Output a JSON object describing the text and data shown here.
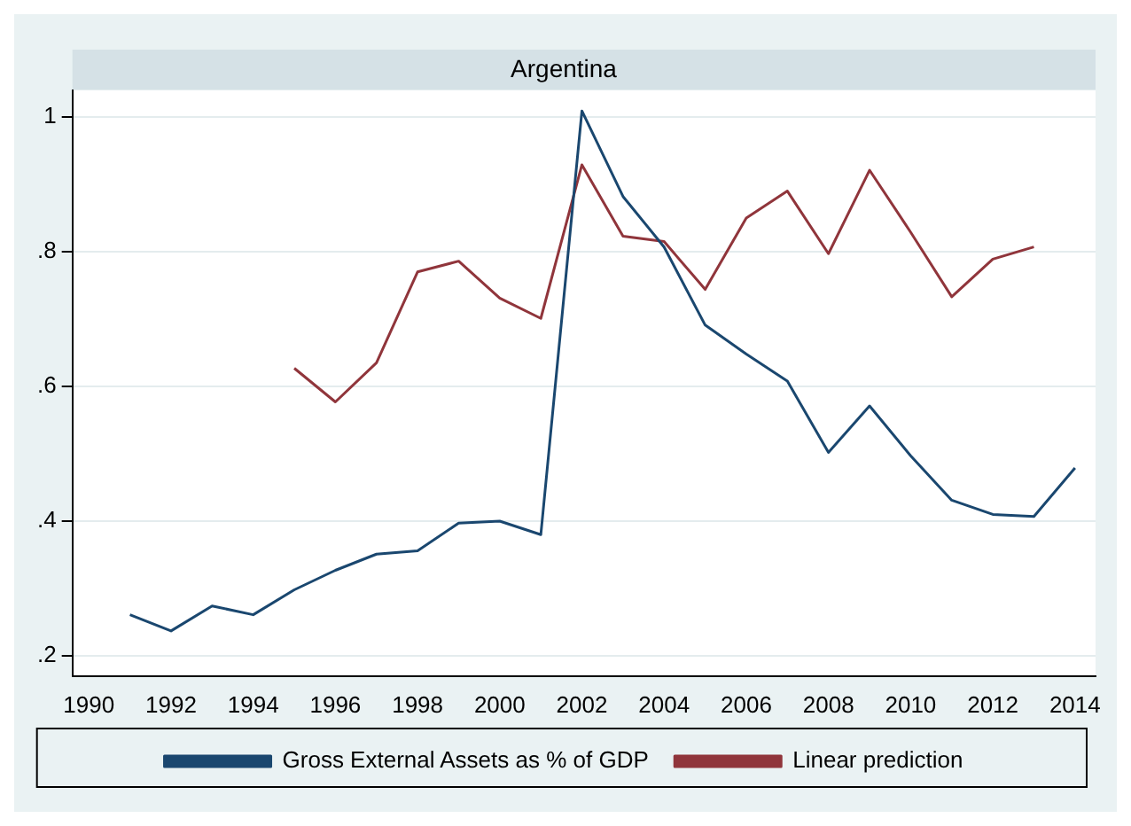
{
  "chart_data": {
    "type": "line",
    "title": "Argentina",
    "x": [
      1991,
      1992,
      1993,
      1994,
      1995,
      1996,
      1997,
      1998,
      1999,
      2000,
      2001,
      2002,
      2003,
      2004,
      2005,
      2006,
      2007,
      2008,
      2009,
      2010,
      2011,
      2012,
      2013,
      2014
    ],
    "series": [
      {
        "name": "Gross External Assets as % of GDP",
        "color": "#1a476f",
        "values": [
          0.261,
          0.237,
          0.274,
          0.261,
          0.298,
          0.327,
          0.351,
          0.356,
          0.397,
          0.4,
          0.38,
          1.009,
          0.882,
          0.807,
          0.691,
          0.648,
          0.608,
          0.502,
          0.571,
          0.497,
          0.431,
          0.41,
          0.407,
          0.479
        ]
      },
      {
        "name": "Linear prediction",
        "color": "#90353b",
        "values": [
          null,
          null,
          null,
          null,
          0.627,
          0.577,
          0.635,
          0.77,
          0.786,
          0.731,
          0.701,
          0.929,
          0.823,
          0.815,
          0.744,
          0.85,
          0.89,
          0.797,
          0.921,
          0.829,
          0.733,
          0.789,
          0.807,
          null
        ]
      }
    ],
    "xlim": [
      1989.6,
      2014.5
    ],
    "xticks": [
      1990,
      1992,
      1994,
      1996,
      1998,
      2000,
      2002,
      2004,
      2006,
      2008,
      2010,
      2012,
      2014
    ],
    "ylim": [
      0.17,
      1.04
    ],
    "yticks": [
      {
        "value": 0.2,
        "label": ".2"
      },
      {
        "value": 0.4,
        "label": ".4"
      },
      {
        "value": 0.6,
        "label": ".6"
      },
      {
        "value": 0.8,
        "label": ".8"
      },
      {
        "value": 1,
        "label": "1"
      }
    ],
    "grid": "y",
    "legend": "bottom",
    "marker": "none",
    "line_style": "solid"
  }
}
